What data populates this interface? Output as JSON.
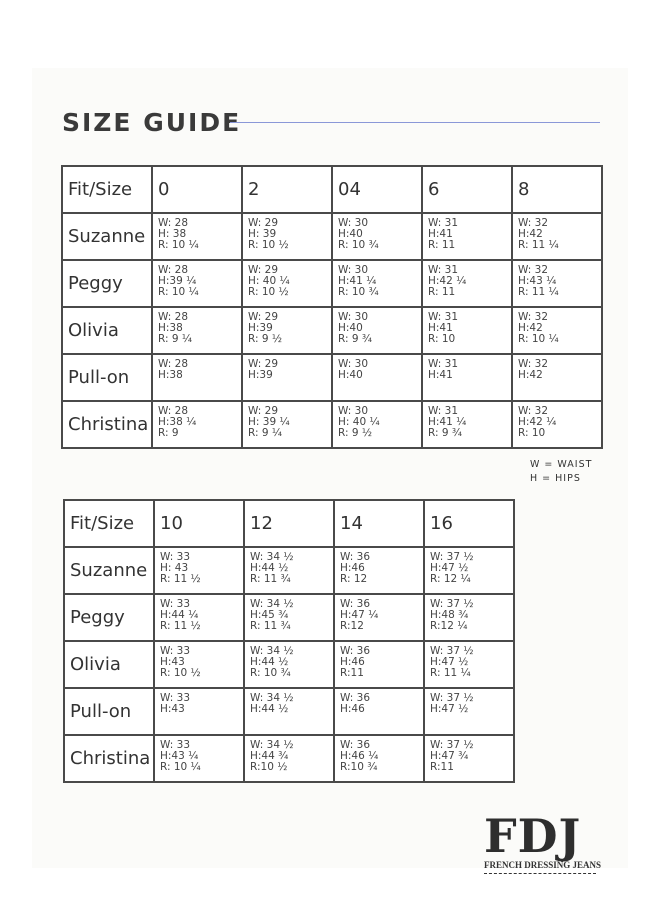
{
  "title": "SIZE GUIDE",
  "accent_color": "#8a97d8",
  "table1": {
    "headers": [
      "Fit/Size",
      "0",
      "2",
      "04",
      "6",
      "8"
    ],
    "rows": [
      {
        "fit": "Suzanne",
        "cells": [
          [
            "W: 28",
            "H: 38",
            "R: 10 ¼"
          ],
          [
            "W: 29",
            "H: 39",
            "R: 10 ½"
          ],
          [
            "W: 30",
            "H:40",
            "R: 10 ¾"
          ],
          [
            "W: 31",
            "H:41",
            "R: 11"
          ],
          [
            "W: 32",
            "H:42",
            "R: 11 ¼"
          ]
        ]
      },
      {
        "fit": "Peggy",
        "cells": [
          [
            "W: 28",
            "H:39 ¼",
            "R: 10 ¼"
          ],
          [
            "W: 29",
            "H: 40 ¼",
            "R: 10 ½"
          ],
          [
            "W: 30",
            "H:41 ¼",
            "R: 10 ¾"
          ],
          [
            "W: 31",
            "H:42 ¼",
            "R: 11"
          ],
          [
            "W: 32",
            "H:43 ¼",
            "R: 11 ¼"
          ]
        ]
      },
      {
        "fit": "Olivia",
        "cells": [
          [
            "W: 28",
            "H:38",
            "R: 9 ¼"
          ],
          [
            "W: 29",
            "H:39",
            "R: 9 ½"
          ],
          [
            "W: 30",
            "H:40",
            "R: 9 ¾"
          ],
          [
            "W: 31",
            "H:41",
            "R: 10"
          ],
          [
            "W: 32",
            "H:42",
            "R: 10 ¼"
          ]
        ]
      },
      {
        "fit": "Pull-on",
        "cells": [
          [
            "W: 28",
            "H:38"
          ],
          [
            "W: 29",
            "H:39"
          ],
          [
            "W: 30",
            "H:40"
          ],
          [
            "W: 31",
            "H:41"
          ],
          [
            "W: 32",
            "H:42"
          ]
        ]
      },
      {
        "fit": "Christina",
        "cells": [
          [
            "W: 28",
            "H:38 ¼",
            "R: 9"
          ],
          [
            "W: 29",
            "H: 39 ¼",
            "R: 9 ¼"
          ],
          [
            "W: 30",
            "H: 40 ¼",
            "R: 9 ½"
          ],
          [
            "W: 31",
            "H:41 ¼",
            "R: 9 ¾"
          ],
          [
            "W: 32",
            "H:42 ¼",
            "R: 10"
          ]
        ]
      }
    ]
  },
  "legend": [
    "W = WAIST",
    "H = HIPS"
  ],
  "table2": {
    "headers": [
      "Fit/Size",
      "10",
      "12",
      "14",
      "16"
    ],
    "rows": [
      {
        "fit": "Suzanne",
        "cells": [
          [
            "W: 33",
            "H: 43",
            "R: 11 ½"
          ],
          [
            "W: 34 ½",
            "H:44 ½",
            "R: 11 ¾"
          ],
          [
            "W: 36",
            "H:46",
            "R: 12"
          ],
          [
            "W: 37 ½",
            "H:47 ½",
            "R: 12 ¼"
          ]
        ]
      },
      {
        "fit": "Peggy",
        "cells": [
          [
            "W: 33",
            "H:44 ¼",
            "R: 11 ½"
          ],
          [
            "W: 34 ½",
            "H:45 ¾",
            "R: 11 ¾"
          ],
          [
            "W: 36",
            "H:47 ¼",
            "R:12"
          ],
          [
            "W: 37 ½",
            "H:48 ¾",
            "R:12 ¼"
          ]
        ]
      },
      {
        "fit": "Olivia",
        "cells": [
          [
            "W: 33",
            "H:43",
            "R: 10 ½"
          ],
          [
            "W: 34 ½",
            "H:44 ½",
            "R: 10 ¾"
          ],
          [
            "W: 36",
            "H:46",
            "R:11"
          ],
          [
            "W: 37 ½",
            "H:47 ½",
            "R: 11 ¼"
          ]
        ]
      },
      {
        "fit": "Pull-on",
        "cells": [
          [
            "W: 33",
            "H:43"
          ],
          [
            "W: 34 ½",
            "H:44 ½"
          ],
          [
            "W: 36",
            "H:46"
          ],
          [
            "W: 37 ½",
            "H:47 ½"
          ]
        ]
      },
      {
        "fit": "Christina",
        "cells": [
          [
            "W: 33",
            "H:43 ¼",
            "R: 10 ¼"
          ],
          [
            "W: 34 ½",
            "H:44 ¾",
            "R:10 ½"
          ],
          [
            "W: 36",
            "H:46 ¼",
            "R:10 ¾"
          ],
          [
            "W: 37 ½",
            "H:47 ¾",
            "R:11"
          ]
        ]
      }
    ]
  },
  "logo": {
    "mark": "FDJ",
    "tagline": "FRENCH DRESSING JEANS"
  }
}
